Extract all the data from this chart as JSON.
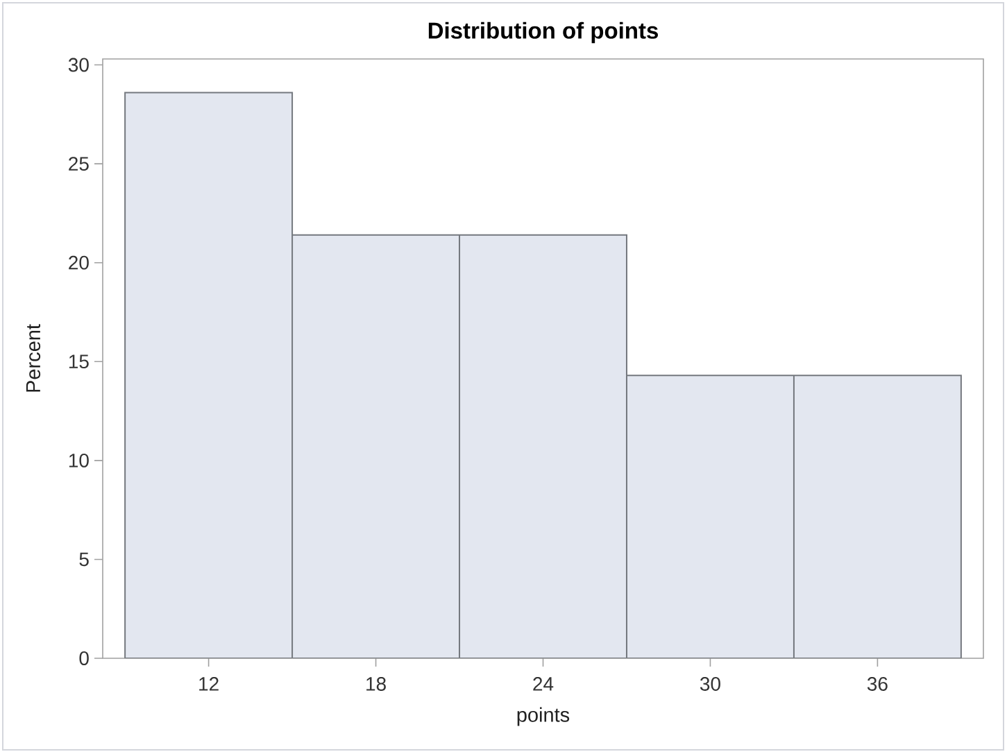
{
  "chart_data": {
    "type": "histogram",
    "title": "Distribution of points",
    "xlabel": "points",
    "ylabel": "Percent",
    "bins": [
      9,
      15,
      21,
      27,
      33,
      39
    ],
    "values": [
      28.6,
      21.4,
      21.4,
      14.3,
      14.3
    ],
    "color": "#e3e7f0",
    "xlim": [
      8.2,
      39.8
    ],
    "ylim": [
      0,
      30.3
    ],
    "xticks": [
      12,
      18,
      24,
      30,
      36
    ],
    "yticks": [
      0,
      5,
      10,
      15,
      20,
      25,
      30
    ]
  }
}
